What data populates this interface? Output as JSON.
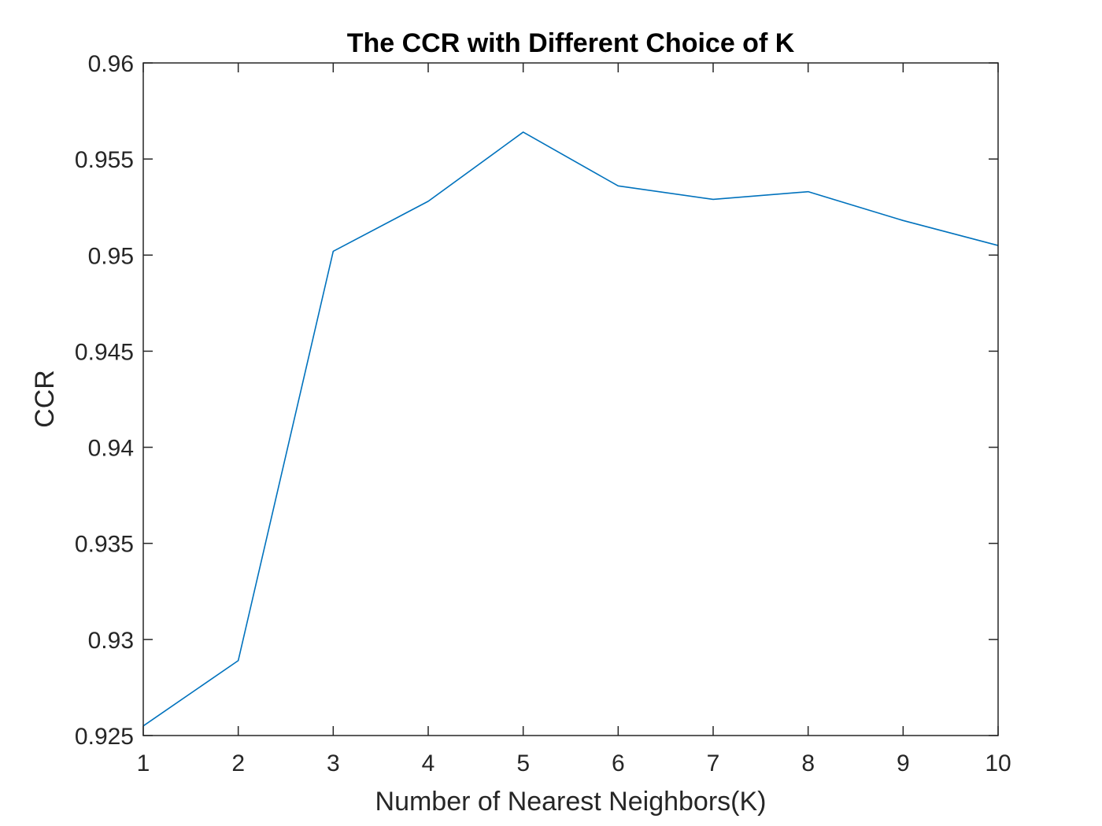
{
  "chart_data": {
    "type": "line",
    "title": "The CCR with Different Choice of K",
    "xlabel": "Number of Nearest Neighbors(K)",
    "ylabel": "CCR",
    "x": [
      1,
      2,
      3,
      4,
      5,
      6,
      7,
      8,
      9,
      10
    ],
    "series": [
      {
        "values": [
          0.9255,
          0.9289,
          0.9502,
          0.9528,
          0.9564,
          0.9536,
          0.9529,
          0.9533,
          0.9518,
          0.9505
        ],
        "color": "#0072BD"
      }
    ],
    "xlim": [
      1,
      10
    ],
    "ylim": [
      0.925,
      0.96
    ],
    "xticks": [
      1,
      2,
      3,
      4,
      5,
      6,
      7,
      8,
      9,
      10
    ],
    "xtick_labels": [
      "1",
      "2",
      "3",
      "4",
      "5",
      "6",
      "7",
      "8",
      "9",
      "10"
    ],
    "yticks": [
      0.925,
      0.93,
      0.935,
      0.94,
      0.945,
      0.95,
      0.955,
      0.96
    ],
    "ytick_labels": [
      "0.925",
      "0.93",
      "0.935",
      "0.94",
      "0.945",
      "0.95",
      "0.955",
      "0.96"
    ],
    "grid": false,
    "box": true,
    "axis_color": "#262626"
  }
}
